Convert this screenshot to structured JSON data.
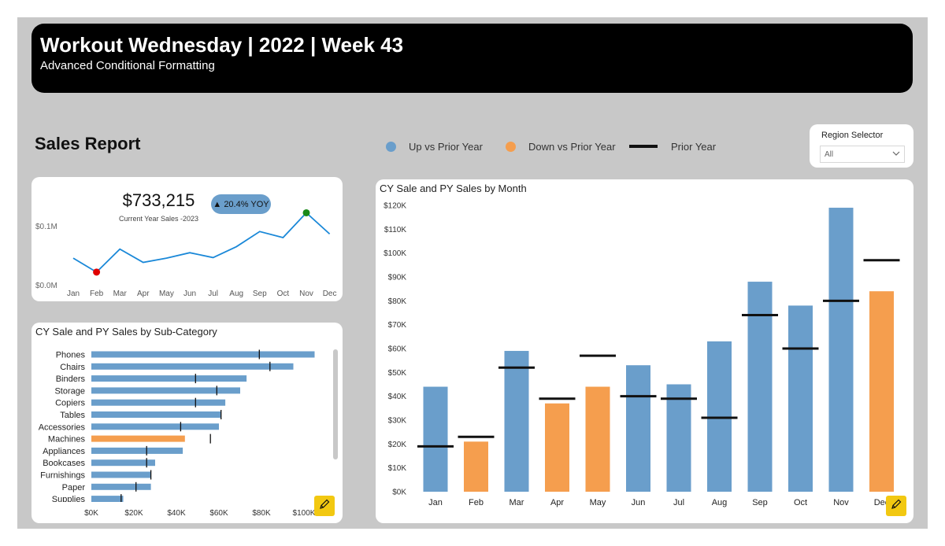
{
  "header": {
    "title": "Workout Wednesday | 2022 | Week 43",
    "subtitle": "Advanced Conditional Formatting"
  },
  "report_title": "Sales Report",
  "legend": {
    "up_label": "Up vs Prior Year",
    "down_label": "Down vs Prior Year",
    "py_label": "Prior Year"
  },
  "colors": {
    "up": "#6a9ecb",
    "down": "#f59e4e",
    "prior_year": "#111111",
    "line": "#1a88d8",
    "min_marker": "#e00000",
    "max_marker": "#1a8a1a",
    "edit": "#f2c811"
  },
  "region_selector": {
    "title": "Region Selector",
    "value": "All",
    "icon": "chevron-down-icon"
  },
  "kpi": {
    "value": "$733,215",
    "caption": "Current Year Sales -2023",
    "yoy_badge": "▲ 20.4% YOY"
  },
  "chart_data": [
    {
      "type": "line",
      "categories": [
        "Jan",
        "Feb",
        "Mar",
        "Apr",
        "May",
        "Jun",
        "Jul",
        "Aug",
        "Sep",
        "Oct",
        "Nov",
        "Dec"
      ],
      "values": [
        44000,
        21000,
        59000,
        37000,
        44000,
        53000,
        45000,
        63000,
        88000,
        78000,
        119000,
        84000
      ],
      "y_ticks": [
        "$0.0M",
        "$0.1M"
      ],
      "ylim": [
        0,
        130000
      ],
      "min_marker": "Feb",
      "max_marker": "Nov"
    },
    {
      "type": "bar",
      "orientation": "horizontal",
      "title": "CY Sale and PY Sales by Sub-Category",
      "categories": [
        "Phones",
        "Chairs",
        "Binders",
        "Storage",
        "Copiers",
        "Tables",
        "Accessories",
        "Machines",
        "Appliances",
        "Bookcases",
        "Furnishings",
        "Paper",
        "Supplies"
      ],
      "series": [
        {
          "values": [
            105000,
            95000,
            73000,
            70000,
            63000,
            61000,
            60000,
            44000,
            43000,
            30000,
            28000,
            28000,
            15000
          ]
        },
        {
          "values": [
            79000,
            84000,
            49000,
            59000,
            49000,
            61000,
            42000,
            56000,
            26000,
            26000,
            28000,
            21000,
            14000
          ]
        }
      ],
      "highlight": [
        "up",
        "up",
        "up",
        "up",
        "up",
        "up",
        "up",
        "down",
        "up",
        "up",
        "up",
        "up",
        "up"
      ],
      "x_ticks": [
        "$0K",
        "$20K",
        "$40K",
        "$60K",
        "$80K",
        "$100K"
      ],
      "xlim": [
        0,
        100000
      ]
    },
    {
      "type": "bar",
      "title": "CY Sale and PY Sales by Month",
      "categories": [
        "Jan",
        "Feb",
        "Mar",
        "Apr",
        "May",
        "Jun",
        "Jul",
        "Aug",
        "Sep",
        "Oct",
        "Nov",
        "Dec"
      ],
      "series": [
        {
          "values": [
            44000,
            21000,
            59000,
            37000,
            44000,
            53000,
            45000,
            63000,
            88000,
            78000,
            119000,
            84000
          ]
        },
        {
          "values": [
            19000,
            23000,
            52000,
            39000,
            57000,
            40000,
            39000,
            31000,
            74000,
            60000,
            80000,
            97000
          ]
        }
      ],
      "highlight": [
        "up",
        "down",
        "up",
        "down",
        "down",
        "up",
        "up",
        "up",
        "up",
        "up",
        "up",
        "down"
      ],
      "y_ticks": [
        "$0K",
        "$10K",
        "$20K",
        "$30K",
        "$40K",
        "$50K",
        "$60K",
        "$70K",
        "$80K",
        "$90K",
        "$100K",
        "$110K",
        "$120K"
      ],
      "ylim": [
        0,
        120000
      ]
    }
  ]
}
